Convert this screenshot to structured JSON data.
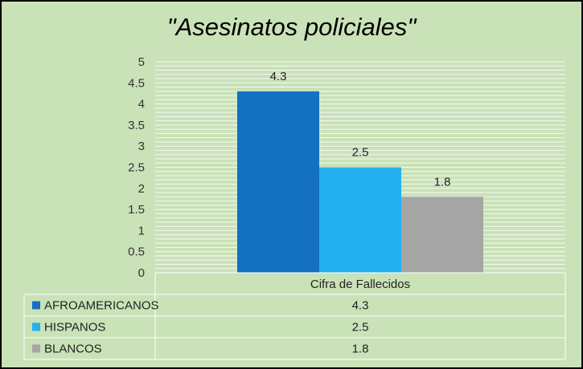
{
  "chart_data": {
    "type": "bar",
    "title": "\"Asesinatos policiales\"",
    "categories": [
      "Cifra de Fallecidos"
    ],
    "series": [
      {
        "name": "AFROAMERICANOS",
        "values": [
          4.3
        ],
        "color": "#1470c1"
      },
      {
        "name": "HISPANOS",
        "values": [
          2.5
        ],
        "color": "#22b0ee"
      },
      {
        "name": "BLANCOS",
        "values": [
          1.8
        ],
        "color": "#a5a5a5"
      }
    ],
    "ylim": [
      0,
      5
    ],
    "yticks": [
      "0",
      "0.5",
      "1",
      "1.5",
      "2",
      "2.5",
      "3",
      "3.5",
      "4",
      "4.5",
      "5"
    ],
    "grid": true,
    "data_labels": [
      "4.3",
      "2.5",
      "1.8"
    ],
    "data_table": true,
    "background_color": "#c9e2b8",
    "gridline_color": "#ffffff"
  }
}
